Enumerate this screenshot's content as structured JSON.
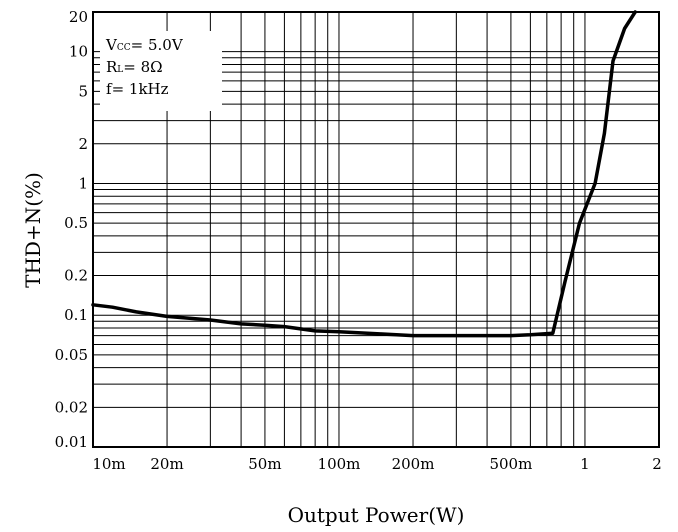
{
  "chart_data": {
    "type": "line",
    "title": "",
    "xlabel": "Output Power(W)",
    "ylabel": "THD+N(%)",
    "x_scale": "log",
    "y_scale": "log",
    "xlim": [
      0.01,
      2
    ],
    "ylim": [
      0.01,
      20
    ],
    "grid": true,
    "x_ticks": [
      {
        "value": 0.01,
        "label": "10m"
      },
      {
        "value": 0.02,
        "label": "20m"
      },
      {
        "value": 0.05,
        "label": "50m"
      },
      {
        "value": 0.1,
        "label": "100m"
      },
      {
        "value": 0.2,
        "label": "200m"
      },
      {
        "value": 0.5,
        "label": "500m"
      },
      {
        "value": 1,
        "label": "1"
      },
      {
        "value": 2,
        "label": "2"
      }
    ],
    "y_ticks": [
      {
        "value": 0.01,
        "label": "0.01"
      },
      {
        "value": 0.02,
        "label": "0.02"
      },
      {
        "value": 0.05,
        "label": "0.05"
      },
      {
        "value": 0.1,
        "label": "0.1"
      },
      {
        "value": 0.2,
        "label": "0.2"
      },
      {
        "value": 0.5,
        "label": "0.5"
      },
      {
        "value": 1,
        "label": "1"
      },
      {
        "value": 2,
        "label": "2"
      },
      {
        "value": 5,
        "label": "5"
      },
      {
        "value": 10,
        "label": "10"
      },
      {
        "value": 20,
        "label": "20"
      }
    ],
    "annotations": [
      {
        "main": "V",
        "sub": "CC",
        "rest": "= 5.0V"
      },
      {
        "main": "R",
        "sub": "L",
        "rest": "= 8Ω"
      },
      {
        "main": "f",
        "sub": "",
        "rest": "= 1kHz"
      }
    ],
    "annotation_position": "top-left",
    "series": [
      {
        "color": "#000000",
        "points": [
          [
            0.01,
            0.12
          ],
          [
            0.012,
            0.115
          ],
          [
            0.015,
            0.106
          ],
          [
            0.02,
            0.098
          ],
          [
            0.03,
            0.092
          ],
          [
            0.04,
            0.086
          ],
          [
            0.05,
            0.084
          ],
          [
            0.06,
            0.082
          ],
          [
            0.08,
            0.076
          ],
          [
            0.1,
            0.075
          ],
          [
            0.15,
            0.072
          ],
          [
            0.2,
            0.07
          ],
          [
            0.3,
            0.07
          ],
          [
            0.4,
            0.07
          ],
          [
            0.5,
            0.07
          ],
          [
            0.6,
            0.071
          ],
          [
            0.74,
            0.073
          ],
          [
            0.83,
            0.18
          ],
          [
            0.95,
            0.5
          ],
          [
            1.1,
            1.0
          ],
          [
            1.2,
            2.4
          ],
          [
            1.3,
            8.5
          ],
          [
            1.45,
            15
          ],
          [
            1.6,
            20
          ]
        ]
      }
    ]
  }
}
